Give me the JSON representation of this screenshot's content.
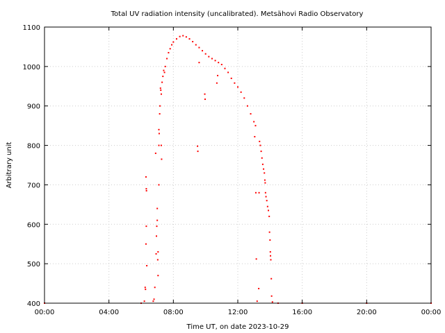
{
  "chart_data": {
    "type": "scatter",
    "title": "Total UV radiation intensity (uncalibrated). Metsähovi Radio Observatory",
    "xlabel": "Time UT, on date 2023-10-29",
    "ylabel": "Arbitrary unit",
    "x_unit": "hours UT",
    "xlim": [
      0,
      24
    ],
    "ylim": [
      400,
      1100
    ],
    "x_ticks": [
      {
        "value": 0,
        "label": "00:00"
      },
      {
        "value": 4,
        "label": "04:00"
      },
      {
        "value": 8,
        "label": "08:00"
      },
      {
        "value": 12,
        "label": "12:00"
      },
      {
        "value": 16,
        "label": "16:00"
      },
      {
        "value": 20,
        "label": "20:00"
      },
      {
        "value": 24,
        "label": "00:00"
      }
    ],
    "y_ticks": [
      {
        "value": 400,
        "label": "400"
      },
      {
        "value": 500,
        "label": "500"
      },
      {
        "value": 600,
        "label": "600"
      },
      {
        "value": 700,
        "label": "700"
      },
      {
        "value": 800,
        "label": "800"
      },
      {
        "value": 900,
        "label": "900"
      },
      {
        "value": 1000,
        "label": "1000"
      },
      {
        "value": 1100,
        "label": "1100"
      }
    ],
    "grid": true,
    "marker_color": "#ff0000",
    "series": [
      {
        "points": [
          [
            0.0,
            400
          ],
          [
            6.0,
            400
          ],
          [
            6.2,
            405
          ],
          [
            6.25,
            440
          ],
          [
            6.27,
            435
          ],
          [
            6.3,
            720
          ],
          [
            6.32,
            690
          ],
          [
            6.33,
            685
          ],
          [
            6.32,
            595
          ],
          [
            6.3,
            550
          ],
          [
            6.35,
            495
          ],
          [
            6.75,
            405
          ],
          [
            6.8,
            410
          ],
          [
            6.85,
            440
          ],
          [
            6.9,
            780
          ],
          [
            6.93,
            525
          ],
          [
            6.95,
            570
          ],
          [
            6.97,
            595
          ],
          [
            7.0,
            610
          ],
          [
            7.0,
            640
          ],
          [
            7.03,
            510
          ],
          [
            7.05,
            530
          ],
          [
            7.05,
            470
          ],
          [
            7.1,
            700
          ],
          [
            7.1,
            800
          ],
          [
            7.1,
            840
          ],
          [
            7.12,
            830
          ],
          [
            7.15,
            880
          ],
          [
            7.17,
            900
          ],
          [
            7.2,
            945
          ],
          [
            7.22,
            940
          ],
          [
            7.25,
            930
          ],
          [
            7.25,
            800
          ],
          [
            7.27,
            765
          ],
          [
            7.3,
            960
          ],
          [
            7.35,
            975
          ],
          [
            7.4,
            990
          ],
          [
            7.45,
            985
          ],
          [
            7.5,
            1000
          ],
          [
            7.6,
            1020
          ],
          [
            7.7,
            1035
          ],
          [
            7.8,
            1045
          ],
          [
            7.9,
            1055
          ],
          [
            8.0,
            1062
          ],
          [
            8.2,
            1070
          ],
          [
            8.4,
            1076
          ],
          [
            8.6,
            1078
          ],
          [
            8.8,
            1075
          ],
          [
            9.0,
            1070
          ],
          [
            9.2,
            1063
          ],
          [
            9.4,
            1055
          ],
          [
            9.6,
            1048
          ],
          [
            9.5,
            798
          ],
          [
            9.52,
            785
          ],
          [
            9.6,
            1010
          ],
          [
            9.8,
            1040
          ],
          [
            10.0,
            1032
          ],
          [
            9.95,
            930
          ],
          [
            9.97,
            917
          ],
          [
            10.2,
            1025
          ],
          [
            10.4,
            1020
          ],
          [
            10.6,
            1015
          ],
          [
            10.7,
            958
          ],
          [
            10.75,
            977
          ],
          [
            10.8,
            1010
          ],
          [
            11.0,
            1005
          ],
          [
            11.2,
            995
          ],
          [
            11.4,
            985
          ],
          [
            11.6,
            970
          ],
          [
            11.8,
            958
          ],
          [
            12.0,
            948
          ],
          [
            12.2,
            935
          ],
          [
            12.4,
            920
          ],
          [
            12.6,
            900
          ],
          [
            12.8,
            880
          ],
          [
            13.0,
            860
          ],
          [
            13.05,
            822
          ],
          [
            13.1,
            850
          ],
          [
            13.12,
            680
          ],
          [
            13.15,
            512
          ],
          [
            13.2,
            405
          ],
          [
            13.3,
            437
          ],
          [
            13.32,
            680
          ],
          [
            13.35,
            810
          ],
          [
            13.4,
            800
          ],
          [
            13.45,
            785
          ],
          [
            13.5,
            768
          ],
          [
            13.55,
            752
          ],
          [
            13.6,
            740
          ],
          [
            13.65,
            730
          ],
          [
            13.68,
            712
          ],
          [
            13.7,
            705
          ],
          [
            13.72,
            680
          ],
          [
            13.75,
            670
          ],
          [
            13.8,
            660
          ],
          [
            13.85,
            645
          ],
          [
            13.9,
            635
          ],
          [
            13.95,
            620
          ],
          [
            13.97,
            580
          ],
          [
            14.0,
            560
          ],
          [
            14.02,
            530
          ],
          [
            14.03,
            520
          ],
          [
            14.05,
            510
          ],
          [
            14.08,
            462
          ],
          [
            14.1,
            418
          ],
          [
            14.15,
            403
          ],
          [
            14.5,
            400
          ],
          [
            16.0,
            400
          ],
          [
            20.0,
            400
          ],
          [
            24.0,
            400
          ]
        ]
      }
    ]
  }
}
